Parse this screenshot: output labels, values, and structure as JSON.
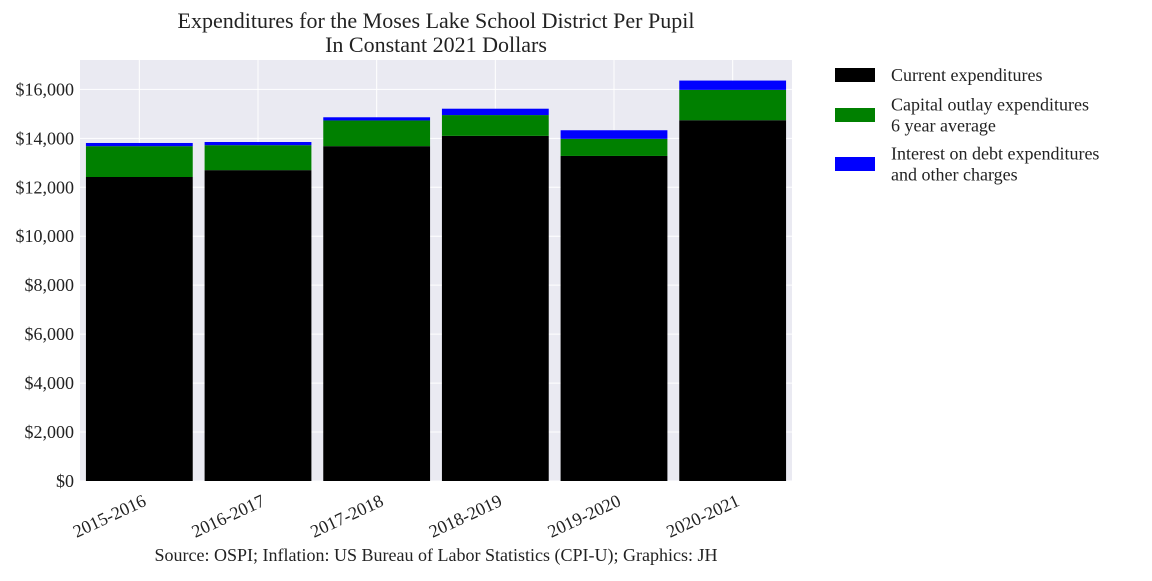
{
  "chart_data": {
    "type": "bar",
    "stacked": true,
    "title": [
      "Expenditures for the Moses Lake School District Per Pupil",
      "In Constant 2021 Dollars"
    ],
    "categories": [
      "2015-2016",
      "2016-2017",
      "2017-2018",
      "2018-2019",
      "2019-2020",
      "2020-2021"
    ],
    "series": [
      {
        "name": [
          "Current expenditures"
        ],
        "color": "#000000",
        "values": [
          12420,
          12700,
          13680,
          14100,
          13280,
          14740
        ]
      },
      {
        "name": [
          "Capital outlay expenditures",
          "6 year average"
        ],
        "color": "#008000",
        "values": [
          1260,
          1020,
          1050,
          850,
          700,
          1240
        ]
      },
      {
        "name": [
          "Interest on debt expenditures",
          "and other charges"
        ],
        "color": "#0000ff",
        "values": [
          130,
          130,
          130,
          260,
          350,
          380
        ]
      }
    ],
    "ylim": [
      0,
      17200
    ],
    "yticks": [
      {
        "value": 0,
        "label": "$0"
      },
      {
        "value": 2000,
        "label": "$2,000"
      },
      {
        "value": 4000,
        "label": "$4,000"
      },
      {
        "value": 6000,
        "label": "$6,000"
      },
      {
        "value": 8000,
        "label": "$8,000"
      },
      {
        "value": 10000,
        "label": "$10,000"
      },
      {
        "value": 12000,
        "label": "$12,000"
      },
      {
        "value": 14000,
        "label": "$14,000"
      },
      {
        "value": 16000,
        "label": "$16,000"
      }
    ],
    "grid": true,
    "legend_position": "outside-right",
    "source": "Source: OSPI; Inflation: US Bureau of Labor Statistics (CPI-U); Graphics: JH",
    "colors": {
      "plot_background": "#eaeaf2",
      "grid": "#ffffff"
    }
  }
}
